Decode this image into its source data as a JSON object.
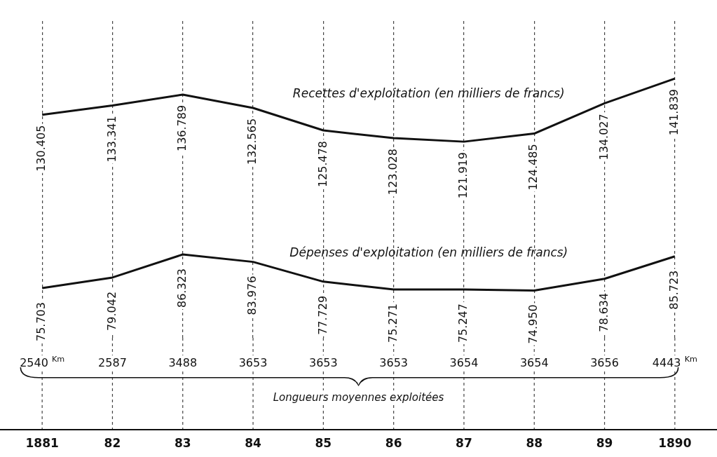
{
  "chart_data": {
    "type": "line",
    "categories": [
      "1881",
      "82",
      "83",
      "84",
      "85",
      "86",
      "87",
      "88",
      "89",
      "1890"
    ],
    "series": [
      {
        "name": "Recettes d'exploitation (en milliers de francs)",
        "color": "#111111",
        "values": [
          130.405,
          133.341,
          136.789,
          132.565,
          125.478,
          123.028,
          121.919,
          124.485,
          134.027,
          141.839
        ],
        "value_labels": [
          "130.405",
          "133.341",
          "136.789",
          "132.565",
          "125.478",
          "123.028",
          "121.919",
          "124.485",
          "134.027",
          "141.839"
        ]
      },
      {
        "name": "Dépenses d'exploitation (en milliers de francs)",
        "color": "#111111",
        "values": [
          75.703,
          79.042,
          86.323,
          83.976,
          77.729,
          75.271,
          75.247,
          74.95,
          78.634,
          85.723
        ],
        "value_labels": [
          "75.703",
          "79.042",
          "86.323",
          "83.976",
          "77.729",
          "75.271",
          "75.247",
          "74.950",
          "78.634",
          "85.723"
        ]
      }
    ],
    "annotations": [
      "2540 $^{Km}$",
      "2587",
      "3488",
      "3653",
      "3653",
      "3653",
      "3654",
      "3654",
      "3656",
      "4443 $^{Km}$",
      "Longueurs moyennes exploitées"
    ],
    "grid": "x",
    "legend": false,
    "marker": "none",
    "line_style": "solid"
  }
}
